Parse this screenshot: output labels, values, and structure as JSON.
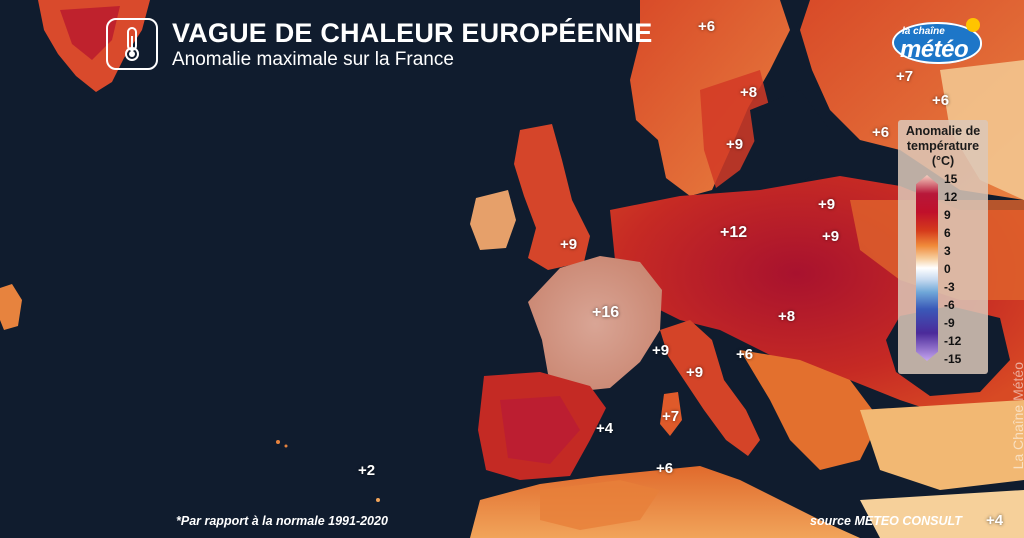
{
  "header": {
    "title": "VAGUE DE CHALEUR EUROPÉENNE",
    "subtitle": "Anomalie maximale sur la France",
    "icon": "thermometer-icon"
  },
  "logo": {
    "small_text": "la chaîne",
    "big_text": "météo",
    "brand_color": "#1d76c8",
    "sun_color": "#ffc400"
  },
  "map_labels": [
    {
      "id": "france",
      "text": "+16"
    },
    {
      "id": "germany",
      "text": "+12"
    },
    {
      "id": "uk",
      "text": "+9"
    },
    {
      "id": "poland",
      "text": "+9"
    },
    {
      "id": "belarus",
      "text": "+9"
    },
    {
      "id": "sweden",
      "text": "+9"
    },
    {
      "id": "baltic",
      "text": "+8"
    },
    {
      "id": "hungary",
      "text": "+8"
    },
    {
      "id": "norway",
      "text": "+6"
    },
    {
      "id": "russia-n",
      "text": "+7"
    },
    {
      "id": "russia-e",
      "text": "+6"
    },
    {
      "id": "finland-e",
      "text": "+6"
    },
    {
      "id": "alps",
      "text": "+9"
    },
    {
      "id": "italy",
      "text": "+9"
    },
    {
      "id": "balkans",
      "text": "+6"
    },
    {
      "id": "sardinia",
      "text": "+7"
    },
    {
      "id": "balearic",
      "text": "+4"
    },
    {
      "id": "tunisia",
      "text": "+6"
    },
    {
      "id": "atlantic",
      "text": "+2"
    },
    {
      "id": "east-med",
      "text": "+4"
    }
  ],
  "legend": {
    "title_line1": "Anomalie de",
    "title_line2": "température",
    "title_line3": "(°C)",
    "ticks": [
      "15",
      "12",
      "9",
      "6",
      "3",
      "0",
      "-3",
      "-6",
      "-9",
      "-12",
      "-15"
    ]
  },
  "footnote": "*Par rapport à la normale 1991-2020",
  "source": "source METEO CONSULT",
  "watermark": "La Chaîne Météo",
  "colors": {
    "sea": "#101c2e",
    "hot": "#b7183a",
    "france": "#d8a394"
  }
}
